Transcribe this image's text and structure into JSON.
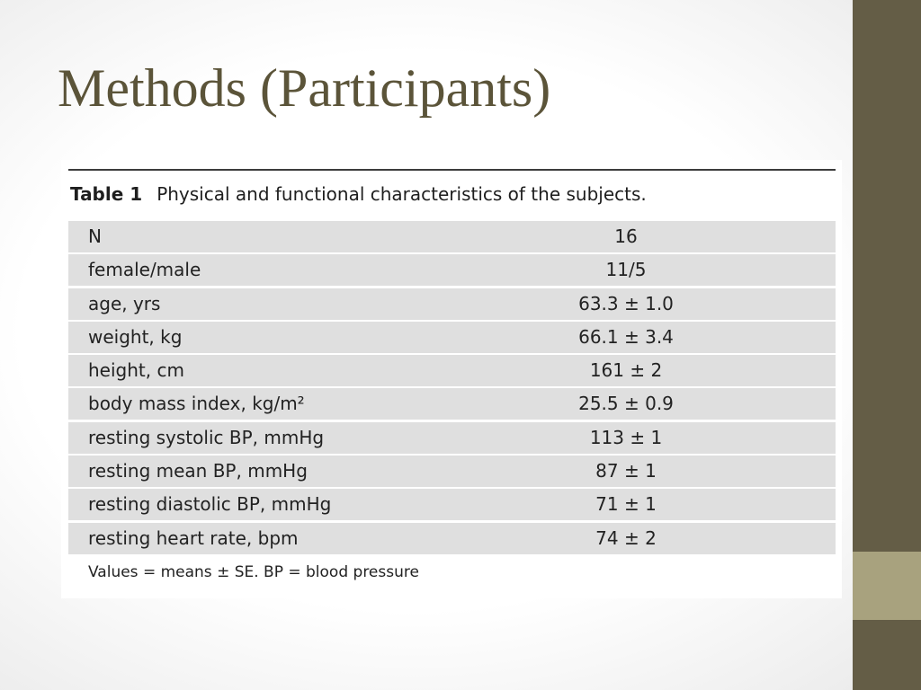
{
  "slide": {
    "title": "Methods (Participants)"
  },
  "table": {
    "number": "Table 1",
    "caption": "Physical and functional characteristics of the subjects.",
    "rows": [
      {
        "label": "N",
        "value": "16"
      },
      {
        "label": "female/male",
        "value": "11/5"
      },
      {
        "label": "age, yrs",
        "value": "63.3 ± 1.0"
      },
      {
        "label": "weight, kg",
        "value": "66.1 ± 3.4"
      },
      {
        "label": "height, cm",
        "value": "161 ± 2"
      },
      {
        "label": "body mass index, kg/m²",
        "value": "25.5 ± 0.9"
      },
      {
        "label": "resting systolic BP, mmHg",
        "value": "113 ± 1"
      },
      {
        "label": "resting mean BP, mmHg",
        "value": "87 ± 1"
      },
      {
        "label": "resting diastolic BP, mmHg",
        "value": "71 ± 1"
      },
      {
        "label": "resting heart rate, bpm",
        "value": "74 ± 2"
      }
    ],
    "footnote": "Values = means ± SE. BP = blood pressure"
  },
  "colors": {
    "title": "#5b5439",
    "side_band": "#645d46",
    "side_accent": "#a8a27e",
    "row_fill": "#dfdfdf"
  }
}
